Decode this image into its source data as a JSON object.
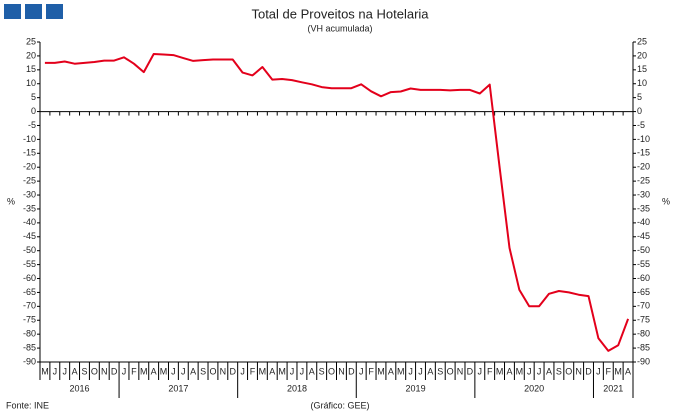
{
  "chart_data": {
    "type": "line",
    "title": "Total de Proveitos na Hotelaria",
    "subtitle": "(VH acumulada)",
    "y_label": "%",
    "y2_label": "%",
    "source": "Fonte: INE",
    "credit": "(Gráfico: GEE)",
    "categories": [
      "M",
      "J",
      "J",
      "A",
      "S",
      "O",
      "N",
      "D",
      "J",
      "F",
      "M",
      "A",
      "M",
      "J",
      "J",
      "A",
      "S",
      "O",
      "N",
      "D",
      "J",
      "F",
      "M",
      "A",
      "M",
      "J",
      "J",
      "A",
      "S",
      "O",
      "N",
      "D",
      "J",
      "F",
      "M",
      "A",
      "M",
      "J",
      "J",
      "A",
      "S",
      "O",
      "N",
      "D",
      "J",
      "F",
      "M",
      "A",
      "M",
      "J",
      "J",
      "A",
      "S",
      "O",
      "N",
      "D",
      "J",
      "F",
      "M",
      "A"
    ],
    "years": [
      "2016",
      "2017",
      "2018",
      "2019",
      "2020",
      "2021"
    ],
    "series": [
      {
        "name": "Total de Proveitos",
        "color": "#e3001b",
        "values": [
          17.5,
          17.5,
          18,
          17.2,
          17.5,
          17.8,
          18.3,
          18.3,
          19.5,
          17.2,
          14.2,
          20.7,
          20.5,
          20.3,
          19.2,
          18.2,
          18.5,
          18.7,
          18.7,
          18.7,
          14,
          13,
          16,
          11.5,
          11.7,
          11.3,
          10.5,
          9.8,
          8.8,
          8.4,
          8.4,
          8.4,
          9.8,
          7.3,
          5.5,
          7,
          7.2,
          8.3,
          7.8,
          7.8,
          7.8,
          7.6,
          7.8,
          7.8,
          6.5,
          9.7,
          -20,
          -49,
          -64,
          -70,
          -70,
          -65.5,
          -64.5,
          -65,
          -65.8,
          -66.3,
          -81.5,
          -86,
          -84,
          -74.5
        ]
      }
    ],
    "ylim": [
      -90,
      25
    ],
    "yticks": [
      -90,
      -85,
      -80,
      -75,
      -70,
      -65,
      -60,
      -55,
      -50,
      -45,
      -40,
      -35,
      -30,
      -25,
      -20,
      -15,
      -10,
      -5,
      0,
      5,
      10,
      15,
      20,
      25
    ]
  }
}
